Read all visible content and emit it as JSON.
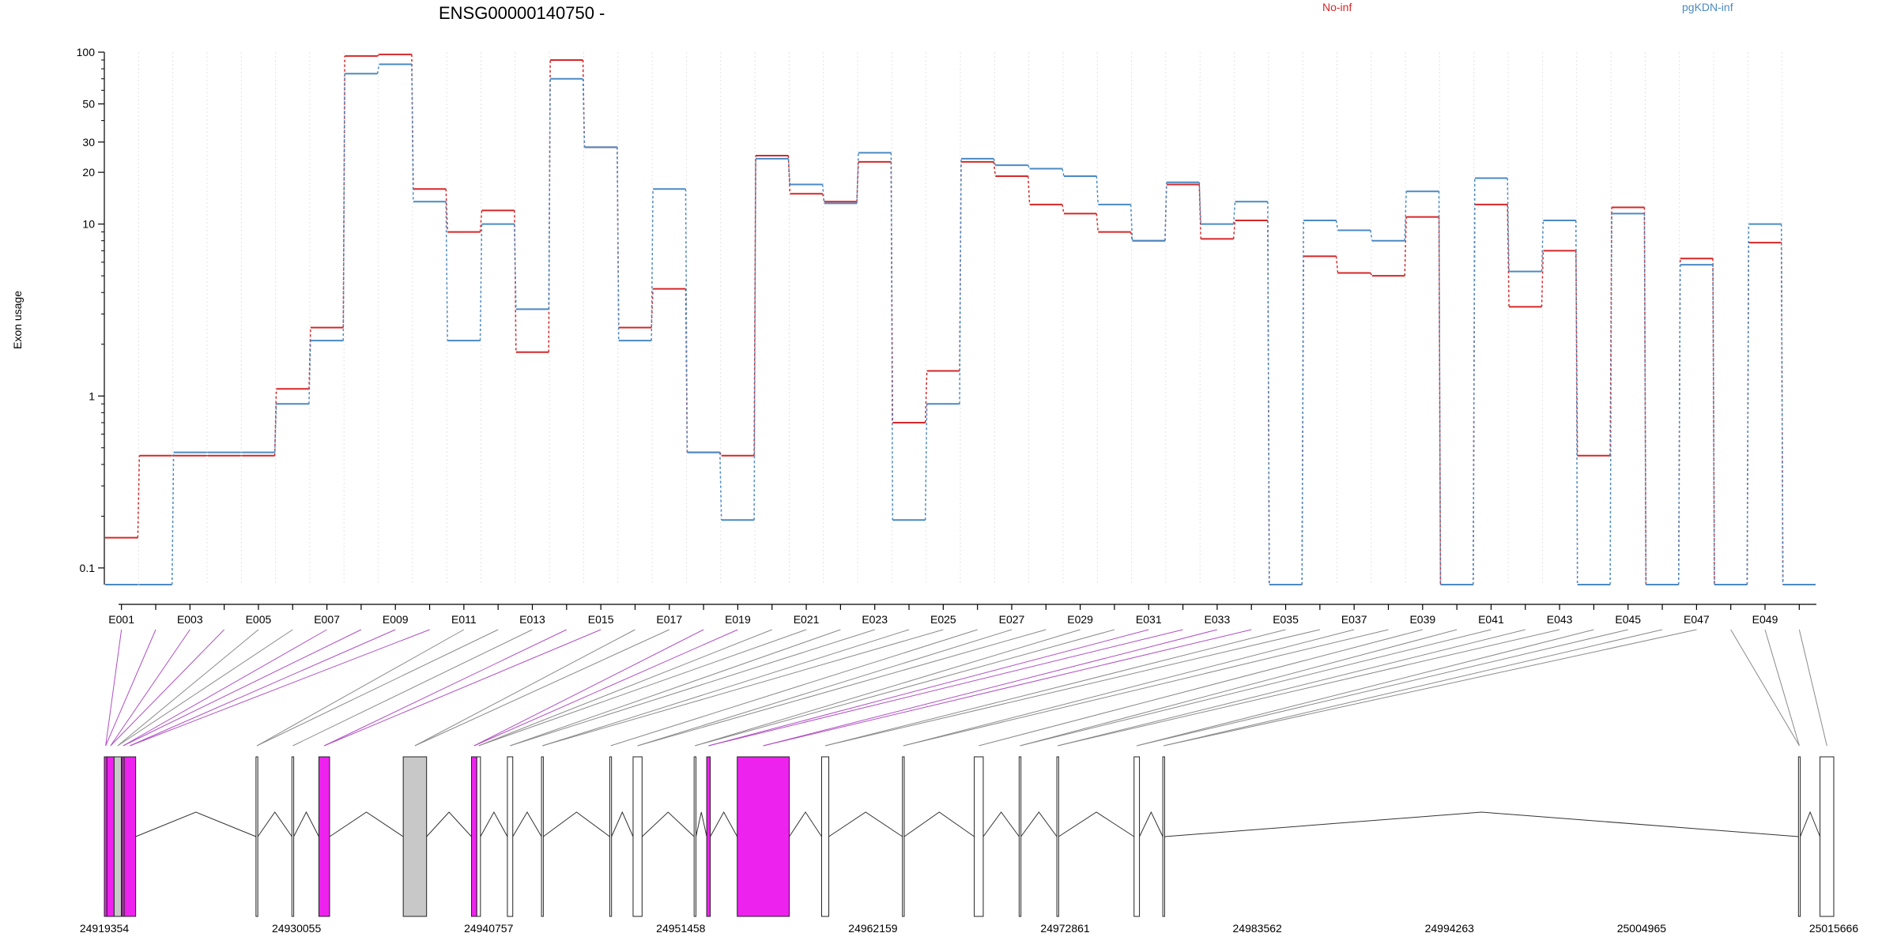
{
  "chart_data": {
    "type": "line",
    "title": "ENSG00000140750 -",
    "ylabel": "Exon usage",
    "xlabel": "",
    "yscale": "log",
    "ylim": [
      0.08,
      100
    ],
    "yticks": [
      0.1,
      1,
      10,
      20,
      30,
      50,
      100
    ],
    "ytick_labels": [
      "0.1",
      "1",
      "10",
      "20",
      "30",
      "50",
      "100"
    ],
    "legend_placement": "top",
    "grid": "vertical dotted at each exon",
    "exons": [
      "E001",
      "E002",
      "E003",
      "E004",
      "E005",
      "E006",
      "E007",
      "E008",
      "E009",
      "E010",
      "E011",
      "E012",
      "E013",
      "E014",
      "E015",
      "E016",
      "E017",
      "E018",
      "E019",
      "E020",
      "E021",
      "E022",
      "E023",
      "E024",
      "E025",
      "E026",
      "E027",
      "E028",
      "E029",
      "E030",
      "E031",
      "E032",
      "E033",
      "E034",
      "E035",
      "E036",
      "E037",
      "E038",
      "E039",
      "E040",
      "E041",
      "E042",
      "E043",
      "E044",
      "E045",
      "E046",
      "E047",
      "E048",
      "E049",
      "E050"
    ],
    "exon_tick_labels": [
      "E001",
      "E003",
      "E005",
      "E007",
      "E009",
      "E011",
      "E013",
      "E015",
      "E017",
      "E019",
      "E021",
      "E023",
      "E025",
      "E027",
      "E029",
      "E031",
      "E033",
      "E035",
      "E037",
      "E039",
      "E041",
      "E043",
      "E045",
      "E047",
      "E049"
    ],
    "series": [
      {
        "name": "No-inf",
        "color": "#d62728",
        "values": [
          0.15,
          0.45,
          0.45,
          0.45,
          0.45,
          1.1,
          2.5,
          95,
          97,
          16,
          9,
          12,
          1.8,
          90,
          28,
          2.5,
          4.2,
          0.47,
          0.45,
          25,
          15,
          13.5,
          23,
          0.7,
          1.4,
          23,
          19,
          13,
          11.5,
          9,
          8,
          17,
          8.2,
          10.5,
          0.08,
          6.5,
          5.2,
          5,
          11,
          0.08,
          13,
          3.3,
          7,
          0.45,
          12.5,
          0.08,
          6.3,
          0.08,
          7.8,
          0.08
        ]
      },
      {
        "name": "pgKDN-inf",
        "color": "#4a8ac4",
        "values": [
          0.08,
          0.08,
          0.47,
          0.47,
          0.47,
          0.9,
          2.1,
          75,
          85,
          13.5,
          2.1,
          10,
          3.2,
          70,
          28,
          2.1,
          16,
          0.47,
          0.19,
          24,
          17,
          13.2,
          26,
          0.19,
          0.9,
          24,
          22,
          21,
          19,
          13,
          8,
          17.5,
          10,
          13.5,
          0.08,
          10.5,
          9.2,
          8,
          15.5,
          0.08,
          18.5,
          5.3,
          10.5,
          0.08,
          11.5,
          0.08,
          5.8,
          0.08,
          10,
          0.08
        ]
      }
    ],
    "genomic_ticks": [
      "24919354",
      "24930055",
      "24940757",
      "24951458",
      "24962159",
      "24972861",
      "24983562",
      "24994263",
      "25004965",
      "25015666"
    ],
    "gene_model": {
      "start": 24919354,
      "end": 25015666,
      "exon_color": "#ffffff",
      "highlight_color": "#ee22ee",
      "flat_color": "#c8c8c8",
      "exon_blocks": [
        {
          "s": 24919354,
          "e": 24919500,
          "fill": "#ee22ee"
        },
        {
          "s": 24919500,
          "e": 24919900,
          "fill": "#ee22ee"
        },
        {
          "s": 24919900,
          "e": 24920300,
          "fill": "#c8c8c8"
        },
        {
          "s": 24920350,
          "e": 24920460,
          "fill": "#ee22ee"
        },
        {
          "s": 24920460,
          "e": 24921100,
          "fill": "#ee22ee"
        },
        {
          "s": 24927800,
          "e": 24927900,
          "fill": "#ffffff"
        },
        {
          "s": 24929800,
          "e": 24929900,
          "fill": "#ffffff"
        },
        {
          "s": 24931300,
          "e": 24931900,
          "fill": "#ee22ee"
        },
        {
          "s": 24936000,
          "e": 24937300,
          "fill": "#c8c8c8"
        },
        {
          "s": 24939800,
          "e": 24940100,
          "fill": "#ee22ee"
        },
        {
          "s": 24940100,
          "e": 24940300,
          "fill": "#ffffff"
        },
        {
          "s": 24941800,
          "e": 24942100,
          "fill": "#ffffff"
        },
        {
          "s": 24943700,
          "e": 24943800,
          "fill": "#ffffff"
        },
        {
          "s": 24947500,
          "e": 24947600,
          "fill": "#ffffff"
        },
        {
          "s": 24948800,
          "e": 24949300,
          "fill": "#ffffff"
        },
        {
          "s": 24952200,
          "e": 24952300,
          "fill": "#ffffff"
        },
        {
          "s": 24952900,
          "e": 24953100,
          "fill": "#ee22ee"
        },
        {
          "s": 24954600,
          "e": 24957500,
          "fill": "#ee22ee"
        },
        {
          "s": 24959300,
          "e": 24959700,
          "fill": "#ffffff"
        },
        {
          "s": 24963800,
          "e": 24963900,
          "fill": "#ffffff"
        },
        {
          "s": 24967800,
          "e": 24968300,
          "fill": "#ffffff"
        },
        {
          "s": 24970300,
          "e": 24970400,
          "fill": "#ffffff"
        },
        {
          "s": 24972400,
          "e": 24972500,
          "fill": "#ffffff"
        },
        {
          "s": 24976700,
          "e": 24977000,
          "fill": "#ffffff"
        },
        {
          "s": 24978300,
          "e": 24978400,
          "fill": "#ffffff"
        },
        {
          "s": 25013700,
          "e": 25013800,
          "fill": "#ffffff"
        },
        {
          "s": 25014900,
          "e": 25015666,
          "fill": "#ffffff"
        }
      ]
    }
  }
}
